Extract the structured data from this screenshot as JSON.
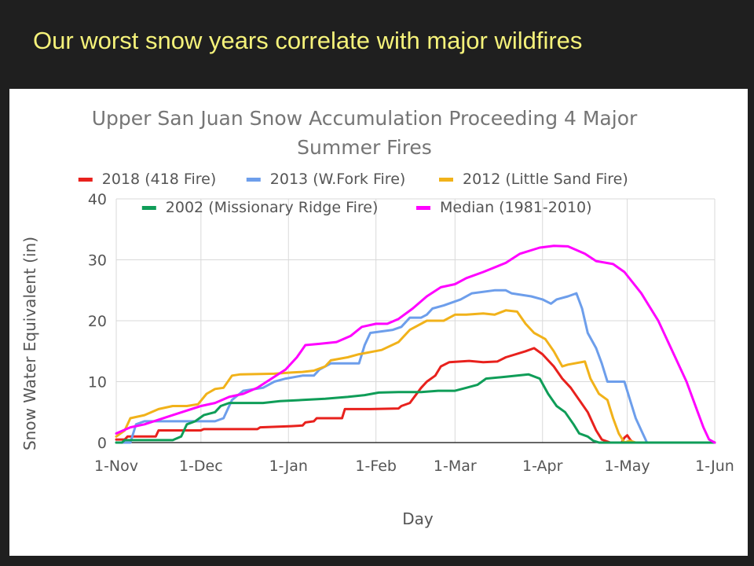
{
  "slide": {
    "title": "Our worst snow years correlate with major wildfires"
  },
  "chart_data": {
    "type": "line",
    "title": "Upper San Juan Snow Accumulation Proceeding 4 Major Summer Fires",
    "title_lines": [
      "Upper San Juan Snow Accumulation Proceeding 4 Major",
      "Summer Fires"
    ],
    "xlabel": "Day",
    "ylabel": "Snow Water Equivalent (in)",
    "x_unit": "day (1-Nov = 0)",
    "xlim": [
      0,
      212
    ],
    "ylim": [
      0,
      40
    ],
    "y_ticks": [
      0,
      10,
      20,
      30,
      40
    ],
    "x_ticks": [
      {
        "label": "1-Nov",
        "day": 0
      },
      {
        "label": "1-Dec",
        "day": 30
      },
      {
        "label": "1-Jan",
        "day": 61
      },
      {
        "label": "1-Feb",
        "day": 92
      },
      {
        "label": "1-Mar",
        "day": 120
      },
      {
        "label": "1-Apr",
        "day": 151
      },
      {
        "label": "1-May",
        "day": 181
      },
      {
        "label": "1-Jun",
        "day": 212
      }
    ],
    "grid": true,
    "legend_position": "top",
    "series": [
      {
        "name": "2018 (418 Fire)",
        "color": "#e8211d",
        "points": [
          [
            0,
            0.5
          ],
          [
            3,
            0.5
          ],
          [
            4,
            1
          ],
          [
            14,
            1
          ],
          [
            15,
            2
          ],
          [
            30,
            2
          ],
          [
            31,
            2.2
          ],
          [
            40,
            2.2
          ],
          [
            50,
            2.2
          ],
          [
            51,
            2.5
          ],
          [
            62,
            2.7
          ],
          [
            66,
            2.8
          ],
          [
            67,
            3.3
          ],
          [
            70,
            3.5
          ],
          [
            71,
            4
          ],
          [
            80,
            4
          ],
          [
            81,
            5.5
          ],
          [
            90,
            5.5
          ],
          [
            100,
            5.6
          ],
          [
            101,
            6
          ],
          [
            104,
            6.5
          ],
          [
            108,
            9
          ],
          [
            110,
            10
          ],
          [
            113,
            11
          ],
          [
            115,
            12.5
          ],
          [
            118,
            13.2
          ],
          [
            125,
            13.4
          ],
          [
            130,
            13.2
          ],
          [
            135,
            13.3
          ],
          [
            138,
            14
          ],
          [
            145,
            15
          ],
          [
            148,
            15.5
          ],
          [
            151,
            14.5
          ],
          [
            155,
            12.5
          ],
          [
            158,
            10.5
          ],
          [
            161,
            9
          ],
          [
            164,
            7
          ],
          [
            167,
            5
          ],
          [
            170,
            2
          ],
          [
            172,
            0.5
          ],
          [
            175,
            0
          ],
          [
            179,
            0
          ],
          [
            180,
            0.8
          ],
          [
            181,
            1.2
          ],
          [
            182,
            0.5
          ],
          [
            183,
            0
          ],
          [
            212,
            0
          ]
        ]
      },
      {
        "name": "2013 (W.Fork Fire)",
        "color": "#6d9eeb",
        "points": [
          [
            0,
            0
          ],
          [
            5,
            0
          ],
          [
            7,
            3
          ],
          [
            10,
            3.5
          ],
          [
            25,
            3.5
          ],
          [
            35,
            3.5
          ],
          [
            38,
            4
          ],
          [
            41,
            7
          ],
          [
            45,
            8.5
          ],
          [
            52,
            9
          ],
          [
            56,
            10
          ],
          [
            60,
            10.5
          ],
          [
            66,
            11
          ],
          [
            70,
            11
          ],
          [
            72,
            12
          ],
          [
            76,
            13
          ],
          [
            86,
            13
          ],
          [
            88,
            16
          ],
          [
            90,
            18
          ],
          [
            98,
            18.5
          ],
          [
            101,
            19
          ],
          [
            104,
            20.5
          ],
          [
            108,
            20.5
          ],
          [
            110,
            21
          ],
          [
            112,
            22
          ],
          [
            116,
            22.5
          ],
          [
            122,
            23.5
          ],
          [
            126,
            24.5
          ],
          [
            134,
            25
          ],
          [
            138,
            25
          ],
          [
            140,
            24.5
          ],
          [
            147,
            24
          ],
          [
            151,
            23.5
          ],
          [
            154,
            22.8
          ],
          [
            156,
            23.5
          ],
          [
            160,
            24
          ],
          [
            163,
            24.5
          ],
          [
            165,
            22
          ],
          [
            167,
            18
          ],
          [
            170,
            15.5
          ],
          [
            172,
            13
          ],
          [
            174,
            10
          ],
          [
            177,
            10
          ],
          [
            180,
            10
          ],
          [
            182,
            7
          ],
          [
            184,
            4
          ],
          [
            186,
            2
          ],
          [
            188,
            0
          ],
          [
            212,
            0
          ]
        ]
      },
      {
        "name": "2012 (Little Sand Fire)",
        "color": "#f1b21a",
        "points": [
          [
            0,
            1
          ],
          [
            3,
            2
          ],
          [
            5,
            4
          ],
          [
            10,
            4.5
          ],
          [
            15,
            5.5
          ],
          [
            20,
            6
          ],
          [
            25,
            6
          ],
          [
            29,
            6.3
          ],
          [
            32,
            8
          ],
          [
            35,
            8.8
          ],
          [
            38,
            9
          ],
          [
            41,
            11
          ],
          [
            44,
            11.2
          ],
          [
            56,
            11.3
          ],
          [
            62,
            11.5
          ],
          [
            66,
            11.6
          ],
          [
            70,
            11.8
          ],
          [
            74,
            12.5
          ],
          [
            76,
            13.5
          ],
          [
            82,
            14
          ],
          [
            86,
            14.5
          ],
          [
            94,
            15.2
          ],
          [
            100,
            16.5
          ],
          [
            104,
            18.5
          ],
          [
            110,
            20
          ],
          [
            116,
            20
          ],
          [
            120,
            21
          ],
          [
            124,
            21
          ],
          [
            130,
            21.2
          ],
          [
            134,
            21
          ],
          [
            138,
            21.7
          ],
          [
            142,
            21.5
          ],
          [
            145,
            19.5
          ],
          [
            148,
            18
          ],
          [
            152,
            17
          ],
          [
            155,
            15
          ],
          [
            158,
            12.5
          ],
          [
            160,
            12.8
          ],
          [
            166,
            13.3
          ],
          [
            168,
            10.5
          ],
          [
            171,
            8
          ],
          [
            174,
            7
          ],
          [
            176,
            4
          ],
          [
            178,
            1.5
          ],
          [
            180,
            0
          ],
          [
            182,
            0.3
          ],
          [
            184,
            0
          ],
          [
            212,
            0
          ]
        ]
      },
      {
        "name": "2002 (Missionary Ridge Fire)",
        "color": "#0f9d58",
        "points": [
          [
            0,
            0
          ],
          [
            2,
            0
          ],
          [
            3,
            0.4
          ],
          [
            20,
            0.4
          ],
          [
            23,
            1
          ],
          [
            25,
            3
          ],
          [
            28,
            3.5
          ],
          [
            31,
            4.5
          ],
          [
            35,
            5
          ],
          [
            37,
            6
          ],
          [
            40,
            6.5
          ],
          [
            46,
            6.5
          ],
          [
            52,
            6.5
          ],
          [
            58,
            6.8
          ],
          [
            66,
            7
          ],
          [
            74,
            7.2
          ],
          [
            82,
            7.5
          ],
          [
            88,
            7.8
          ],
          [
            93,
            8.2
          ],
          [
            100,
            8.3
          ],
          [
            108,
            8.3
          ],
          [
            114,
            8.5
          ],
          [
            120,
            8.5
          ],
          [
            124,
            9
          ],
          [
            128,
            9.5
          ],
          [
            131,
            10.5
          ],
          [
            138,
            10.8
          ],
          [
            142,
            11
          ],
          [
            146,
            11.2
          ],
          [
            150,
            10.5
          ],
          [
            153,
            8
          ],
          [
            156,
            6
          ],
          [
            159,
            5
          ],
          [
            162,
            3
          ],
          [
            164,
            1.5
          ],
          [
            167,
            1
          ],
          [
            169,
            0.3
          ],
          [
            171,
            0
          ],
          [
            212,
            0
          ]
        ]
      },
      {
        "name": "Median (1981-2010)",
        "color": "#ff00ff",
        "points": [
          [
            0,
            1.5
          ],
          [
            5,
            2.5
          ],
          [
            10,
            3
          ],
          [
            20,
            4.5
          ],
          [
            30,
            6
          ],
          [
            35,
            6.5
          ],
          [
            40,
            7.5
          ],
          [
            45,
            8
          ],
          [
            50,
            9
          ],
          [
            55,
            10.5
          ],
          [
            60,
            12
          ],
          [
            64,
            14
          ],
          [
            67,
            16
          ],
          [
            72,
            16.2
          ],
          [
            78,
            16.5
          ],
          [
            83,
            17.5
          ],
          [
            87,
            19
          ],
          [
            92,
            19.5
          ],
          [
            96,
            19.5
          ],
          [
            100,
            20.3
          ],
          [
            105,
            22
          ],
          [
            110,
            24
          ],
          [
            115,
            25.5
          ],
          [
            120,
            26
          ],
          [
            124,
            27
          ],
          [
            130,
            28
          ],
          [
            138,
            29.5
          ],
          [
            143,
            31
          ],
          [
            150,
            32
          ],
          [
            155,
            32.3
          ],
          [
            160,
            32.2
          ],
          [
            166,
            31
          ],
          [
            170,
            29.8
          ],
          [
            176,
            29.3
          ],
          [
            180,
            28
          ],
          [
            186,
            24.5
          ],
          [
            192,
            20
          ],
          [
            197,
            15
          ],
          [
            202,
            10
          ],
          [
            206,
            5
          ],
          [
            208,
            2.5
          ],
          [
            210,
            0.5
          ],
          [
            212,
            0
          ]
        ]
      }
    ]
  }
}
